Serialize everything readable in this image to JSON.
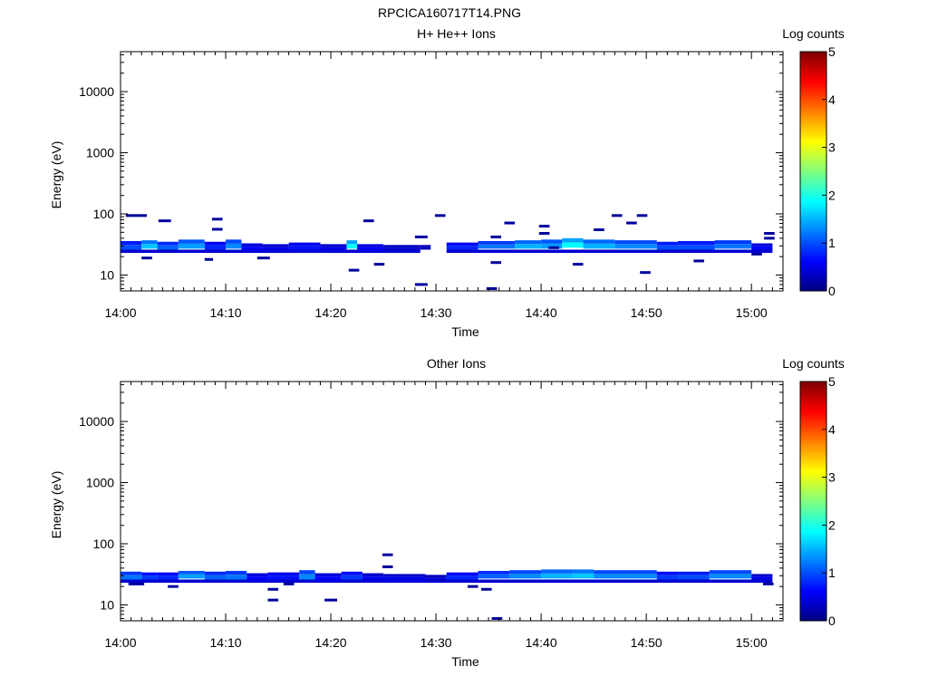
{
  "title": "RPCICA160717T14.PNG",
  "chart_data": [
    {
      "type": "heatmap",
      "title": "H+ He++ Ions",
      "xlabel": "Time",
      "ylabel": "Energy (eV)",
      "x_ticks": [
        "14:00",
        "14:10",
        "14:20",
        "14:30",
        "14:40",
        "14:50",
        "15:00"
      ],
      "x_range_minutes": [
        0,
        63
      ],
      "y_scale": "log",
      "y_range": [
        5.5,
        45000
      ],
      "y_ticks": [
        "10",
        "100",
        "1000",
        "10000"
      ],
      "grid": false,
      "colorbar": {
        "label": "Log counts",
        "range": [
          0,
          5
        ],
        "ticks": [
          "0",
          "1",
          "2",
          "3",
          "4",
          "5"
        ]
      },
      "blocks": [
        {
          "t": [
            0.0,
            2.0
          ],
          "e": [
            26,
            36
          ],
          "v": 1.0
        },
        {
          "t": [
            2.0,
            3.5
          ],
          "e": [
            27,
            37
          ],
          "v": 1.6
        },
        {
          "t": [
            3.5,
            5.5
          ],
          "e": [
            26,
            35
          ],
          "v": 1.1
        },
        {
          "t": [
            5.5,
            8.0
          ],
          "e": [
            27,
            38
          ],
          "v": 1.4
        },
        {
          "t": [
            8.0,
            10.0
          ],
          "e": [
            26,
            35
          ],
          "v": 0.8
        },
        {
          "t": [
            10.0,
            11.5
          ],
          "e": [
            27,
            38
          ],
          "v": 1.3
        },
        {
          "t": [
            11.5,
            13.5
          ],
          "e": [
            25,
            33
          ],
          "v": 0.6
        },
        {
          "t": [
            13.5,
            16.0
          ],
          "e": [
            25,
            32
          ],
          "v": 0.5
        },
        {
          "t": [
            16.0,
            19.0
          ],
          "e": [
            26,
            34
          ],
          "v": 0.7
        },
        {
          "t": [
            19.0,
            21.5
          ],
          "e": [
            25,
            32
          ],
          "v": 0.5
        },
        {
          "t": [
            21.5,
            22.5
          ],
          "e": [
            27,
            37
          ],
          "v": 1.9
        },
        {
          "t": [
            22.5,
            25.0
          ],
          "e": [
            25,
            32
          ],
          "v": 0.6
        },
        {
          "t": [
            25.0,
            28.5
          ],
          "e": [
            25,
            31
          ],
          "v": 0.4
        },
        {
          "t": [
            28.5,
            29.5
          ],
          "e": [
            26,
            31
          ],
          "v": 0.3
        },
        {
          "t": [
            31.0,
            34.0
          ],
          "e": [
            26,
            34
          ],
          "v": 0.8
        },
        {
          "t": [
            34.0,
            37.5
          ],
          "e": [
            27,
            36
          ],
          "v": 1.2
        },
        {
          "t": [
            37.5,
            40.0
          ],
          "e": [
            27,
            37
          ],
          "v": 1.5
        },
        {
          "t": [
            40.0,
            42.0
          ],
          "e": [
            27,
            38
          ],
          "v": 1.4
        },
        {
          "t": [
            42.0,
            44.0
          ],
          "e": [
            28,
            40
          ],
          "v": 1.9
        },
        {
          "t": [
            44.0,
            47.0
          ],
          "e": [
            27,
            38
          ],
          "v": 1.5
        },
        {
          "t": [
            47.0,
            51.0
          ],
          "e": [
            27,
            37
          ],
          "v": 1.3
        },
        {
          "t": [
            51.0,
            53.0
          ],
          "e": [
            26,
            35
          ],
          "v": 1.0
        },
        {
          "t": [
            53.0,
            56.5
          ],
          "e": [
            26,
            36
          ],
          "v": 1.0
        },
        {
          "t": [
            56.5,
            60.0
          ],
          "e": [
            27,
            37
          ],
          "v": 1.2
        },
        {
          "t": [
            60.0,
            62.0
          ],
          "e": [
            26,
            33
          ],
          "v": 0.6
        }
      ],
      "bands": [
        {
          "t": [
            0.0,
            28.5
          ],
          "e": [
            23,
            26
          ],
          "v": 0.4
        },
        {
          "t": [
            31.0,
            62.0
          ],
          "e": [
            23,
            26
          ],
          "v": 0.4
        }
      ],
      "dashes": [
        {
          "t": 1.5,
          "w": 2.0,
          "e": 94,
          "v": 0.15
        },
        {
          "t": 4.2,
          "w": 1.2,
          "e": 77,
          "v": 0.15
        },
        {
          "t": 9.2,
          "w": 1.0,
          "e": 82,
          "v": 0.15
        },
        {
          "t": 9.2,
          "w": 1.0,
          "e": 56,
          "v": 0.15
        },
        {
          "t": 8.4,
          "w": 0.8,
          "e": 18,
          "v": 0.15
        },
        {
          "t": 2.5,
          "w": 1.0,
          "e": 19,
          "v": 0.15
        },
        {
          "t": 13.6,
          "w": 1.2,
          "e": 19,
          "v": 0.15
        },
        {
          "t": 23.6,
          "w": 1.0,
          "e": 77,
          "v": 0.15
        },
        {
          "t": 22.2,
          "w": 1.0,
          "e": 12,
          "v": 0.15
        },
        {
          "t": 24.6,
          "w": 1.0,
          "e": 15,
          "v": 0.15
        },
        {
          "t": 28.6,
          "w": 1.2,
          "e": 42,
          "v": 0.15
        },
        {
          "t": 28.6,
          "w": 1.2,
          "e": 7,
          "v": 0.15
        },
        {
          "t": 30.4,
          "w": 1.0,
          "e": 94,
          "v": 0.15
        },
        {
          "t": 35.7,
          "w": 1.0,
          "e": 42,
          "v": 0.15
        },
        {
          "t": 37.0,
          "w": 1.0,
          "e": 71,
          "v": 0.15
        },
        {
          "t": 35.7,
          "w": 1.0,
          "e": 16,
          "v": 0.15
        },
        {
          "t": 35.3,
          "w": 1.0,
          "e": 6,
          "v": 0.15
        },
        {
          "t": 40.3,
          "w": 1.0,
          "e": 63,
          "v": 0.15
        },
        {
          "t": 40.3,
          "w": 1.0,
          "e": 48,
          "v": 0.15
        },
        {
          "t": 41.2,
          "w": 1.0,
          "e": 28,
          "v": 0.15
        },
        {
          "t": 43.5,
          "w": 1.0,
          "e": 15,
          "v": 0.15
        },
        {
          "t": 45.5,
          "w": 1.0,
          "e": 55,
          "v": 0.15
        },
        {
          "t": 47.2,
          "w": 1.0,
          "e": 94,
          "v": 0.15
        },
        {
          "t": 49.6,
          "w": 1.0,
          "e": 94,
          "v": 0.15
        },
        {
          "t": 48.6,
          "w": 1.0,
          "e": 71,
          "v": 0.15
        },
        {
          "t": 49.9,
          "w": 1.0,
          "e": 11,
          "v": 0.15
        },
        {
          "t": 55.0,
          "w": 1.0,
          "e": 17,
          "v": 0.15
        },
        {
          "t": 60.5,
          "w": 1.0,
          "e": 22,
          "v": 0.15
        },
        {
          "t": 61.7,
          "w": 1.0,
          "e": 48,
          "v": 0.15
        },
        {
          "t": 61.7,
          "w": 1.0,
          "e": 40,
          "v": 0.15
        }
      ]
    },
    {
      "type": "heatmap",
      "title": "Other Ions",
      "xlabel": "Time",
      "ylabel": "Energy (eV)",
      "x_ticks": [
        "14:00",
        "14:10",
        "14:20",
        "14:30",
        "14:40",
        "14:50",
        "15:00"
      ],
      "x_range_minutes": [
        0,
        63
      ],
      "y_scale": "log",
      "y_range": [
        5.5,
        45000
      ],
      "y_ticks": [
        "10",
        "100",
        "1000",
        "10000"
      ],
      "grid": false,
      "colorbar": {
        "label": "Log counts",
        "range": [
          0,
          5
        ],
        "ticks": [
          "0",
          "1",
          "2",
          "3",
          "4",
          "5"
        ]
      },
      "blocks": [
        {
          "t": [
            0.0,
            2.0
          ],
          "e": [
            26,
            35
          ],
          "v": 1.2
        },
        {
          "t": [
            2.0,
            3.5
          ],
          "e": [
            26,
            34
          ],
          "v": 0.9
        },
        {
          "t": [
            3.5,
            5.5
          ],
          "e": [
            26,
            34
          ],
          "v": 0.8
        },
        {
          "t": [
            5.5,
            8.0
          ],
          "e": [
            27,
            36
          ],
          "v": 1.4
        },
        {
          "t": [
            8.0,
            10.0
          ],
          "e": [
            26,
            35
          ],
          "v": 1.1
        },
        {
          "t": [
            10.0,
            12.0
          ],
          "e": [
            26,
            36
          ],
          "v": 1.2
        },
        {
          "t": [
            12.0,
            14.0
          ],
          "e": [
            25,
            33
          ],
          "v": 0.6
        },
        {
          "t": [
            14.0,
            17.0
          ],
          "e": [
            26,
            34
          ],
          "v": 0.7
        },
        {
          "t": [
            17.0,
            18.5
          ],
          "e": [
            26,
            37
          ],
          "v": 1.3
        },
        {
          "t": [
            18.5,
            21.0
          ],
          "e": [
            25,
            33
          ],
          "v": 0.6
        },
        {
          "t": [
            21.0,
            23.0
          ],
          "e": [
            26,
            35
          ],
          "v": 0.9
        },
        {
          "t": [
            23.0,
            25.0
          ],
          "e": [
            25,
            33
          ],
          "v": 0.5
        },
        {
          "t": [
            25.0,
            29.0
          ],
          "e": [
            25,
            32
          ],
          "v": 0.5
        },
        {
          "t": [
            29.0,
            31.0
          ],
          "e": [
            25,
            31
          ],
          "v": 0.4
        },
        {
          "t": [
            31.0,
            34.0
          ],
          "e": [
            26,
            34
          ],
          "v": 0.8
        },
        {
          "t": [
            34.0,
            37.0
          ],
          "e": [
            27,
            36
          ],
          "v": 1.1
        },
        {
          "t": [
            37.0,
            40.0
          ],
          "e": [
            27,
            37
          ],
          "v": 1.3
        },
        {
          "t": [
            40.0,
            43.0
          ],
          "e": [
            27,
            38
          ],
          "v": 1.5
        },
        {
          "t": [
            43.0,
            45.0
          ],
          "e": [
            27,
            38
          ],
          "v": 1.6
        },
        {
          "t": [
            45.0,
            48.0
          ],
          "e": [
            27,
            37
          ],
          "v": 1.3
        },
        {
          "t": [
            48.0,
            51.0
          ],
          "e": [
            27,
            37
          ],
          "v": 1.3
        },
        {
          "t": [
            51.0,
            53.0
          ],
          "e": [
            26,
            35
          ],
          "v": 0.9
        },
        {
          "t": [
            53.0,
            56.0
          ],
          "e": [
            26,
            35
          ],
          "v": 1.0
        },
        {
          "t": [
            56.0,
            60.0
          ],
          "e": [
            27,
            37
          ],
          "v": 1.3
        },
        {
          "t": [
            60.0,
            62.0
          ],
          "e": [
            26,
            32
          ],
          "v": 0.5
        }
      ],
      "bands": [
        {
          "t": [
            0.0,
            62.0
          ],
          "e": [
            23,
            26
          ],
          "v": 0.4
        }
      ],
      "dashes": [
        {
          "t": 1.5,
          "w": 1.5,
          "e": 22,
          "v": 0.15
        },
        {
          "t": 5.0,
          "w": 1.0,
          "e": 20,
          "v": 0.15
        },
        {
          "t": 14.5,
          "w": 1.0,
          "e": 18,
          "v": 0.15
        },
        {
          "t": 14.5,
          "w": 1.0,
          "e": 12,
          "v": 0.15
        },
        {
          "t": 16.0,
          "w": 1.0,
          "e": 22,
          "v": 0.15
        },
        {
          "t": 20.0,
          "w": 1.2,
          "e": 12,
          "v": 0.15
        },
        {
          "t": 25.4,
          "w": 1.0,
          "e": 66,
          "v": 0.15
        },
        {
          "t": 25.4,
          "w": 1.0,
          "e": 42,
          "v": 0.15
        },
        {
          "t": 33.5,
          "w": 1.0,
          "e": 20,
          "v": 0.15
        },
        {
          "t": 34.8,
          "w": 1.0,
          "e": 18,
          "v": 0.15
        },
        {
          "t": 35.8,
          "w": 1.0,
          "e": 6,
          "v": 0.15
        },
        {
          "t": 61.6,
          "w": 1.0,
          "e": 22,
          "v": 0.15
        }
      ]
    }
  ]
}
